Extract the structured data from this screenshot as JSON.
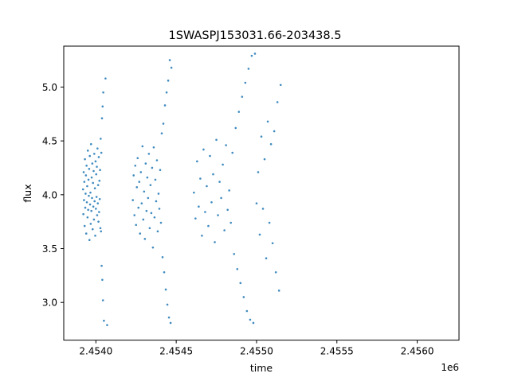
{
  "chart_data": {
    "type": "scatter",
    "title": "1SWASPJ153031.66-203438.5",
    "xlabel": "time",
    "ylabel": "flux",
    "x_offset_label": "1e6",
    "xlim": [
      2453750,
      2456210
    ],
    "ylim": [
      2.65,
      5.38
    ],
    "x_ticks": [
      2453950,
      2454450,
      2454950,
      2455450,
      2455950
    ],
    "x_tick_labels": [
      "2.4540",
      "2.4545",
      "2.4550",
      "2.4555",
      "2.4560"
    ],
    "y_ticks": [
      3.0,
      3.5,
      4.0,
      4.5,
      5.0
    ],
    "y_tick_labels": [
      "3.0",
      "3.5",
      "4.0",
      "4.5",
      "5.0"
    ],
    "grid": false,
    "marker_color": "#1f77b4",
    "series": [
      {
        "x": [
          2453870,
          2453872,
          2453874,
          2453876,
          2453878,
          2453880,
          2453882,
          2453884,
          2453886,
          2453888,
          2453890,
          2453892,
          2453894,
          2453896,
          2453898,
          2453900,
          2453902,
          2453904,
          2453906,
          2453908,
          2453910,
          2453912,
          2453914,
          2453916,
          2453918,
          2453920,
          2453922,
          2453924,
          2453926,
          2453928,
          2453930,
          2453932,
          2453934,
          2453936,
          2453938,
          2453940,
          2453942,
          2453944,
          2453946,
          2453948,
          2453950,
          2453952,
          2453954,
          2453956,
          2453958,
          2453960,
          2453962,
          2453964,
          2453966,
          2453968,
          2453970,
          2453972,
          2453974,
          2453976,
          2453978,
          2453980,
          2453982,
          2453984,
          2453986,
          2453988,
          2453990,
          2453992,
          2453994,
          2453996,
          2454000,
          2454010,
          2454020
        ],
        "y": [
          4.05,
          3.82,
          4.21,
          3.95,
          4.12,
          3.71,
          4.33,
          3.88,
          4.01,
          4.18,
          3.64,
          4.27,
          3.93,
          4.08,
          3.79,
          4.41,
          3.86,
          4.14,
          3.99,
          4.24,
          3.58,
          4.36,
          3.91,
          4.02,
          3.73,
          4.47,
          3.85,
          4.16,
          3.97,
          4.29,
          3.68,
          4.11,
          3.89,
          4.22,
          3.77,
          4.38,
          3.94,
          4.06,
          3.62,
          4.31,
          3.87,
          4.19,
          3.98,
          4.26,
          3.81,
          4.43,
          3.92,
          4.09,
          3.75,
          4.35,
          3.84,
          4.13,
          3.96,
          4.23,
          3.69,
          4.52,
          3.66,
          4.39,
          3.34,
          4.71,
          3.21,
          4.82,
          3.02,
          4.95,
          2.83,
          5.08,
          2.79
        ]
      },
      {
        "x": [
          2454180,
          2454185,
          2454190,
          2454195,
          2454200,
          2454205,
          2454210,
          2454215,
          2454220,
          2454225,
          2454230,
          2454235,
          2454240,
          2454245,
          2454250,
          2454255,
          2454260,
          2454265,
          2454270,
          2454275,
          2454280,
          2454285,
          2454290,
          2454295,
          2454300,
          2454305,
          2454310,
          2454315,
          2454320,
          2454325,
          2454330,
          2454335,
          2454340,
          2454345,
          2454350,
          2454355,
          2454360,
          2454365,
          2454370,
          2454375,
          2454380,
          2454385,
          2454390,
          2454395,
          2454400,
          2454405,
          2454410,
          2454415,
          2454420
        ],
        "y": [
          3.95,
          4.18,
          3.81,
          4.27,
          3.72,
          4.07,
          4.34,
          3.88,
          4.12,
          3.64,
          4.21,
          3.92,
          4.45,
          3.77,
          4.03,
          3.59,
          4.29,
          3.85,
          4.16,
          3.97,
          4.38,
          3.69,
          4.09,
          3.83,
          4.25,
          3.51,
          4.44,
          3.79,
          4.14,
          3.94,
          4.32,
          3.66,
          4.01,
          3.87,
          4.23,
          3.74,
          4.57,
          3.42,
          4.66,
          3.28,
          4.83,
          3.12,
          4.95,
          2.98,
          5.06,
          2.86,
          5.25,
          2.81,
          5.18
        ]
      },
      {
        "x": [
          2454560,
          2454570,
          2454580,
          2454590,
          2454600,
          2454610,
          2454620,
          2454630,
          2454640,
          2454650,
          2454660,
          2454670,
          2454680,
          2454690,
          2454700,
          2454710,
          2454720,
          2454730,
          2454740,
          2454750,
          2454760,
          2454770,
          2454780,
          2454790,
          2454800,
          2454810,
          2454820,
          2454830,
          2454840,
          2454850,
          2454860,
          2454870,
          2454880,
          2454890,
          2454900,
          2454910,
          2454920,
          2454930,
          2454940,
          2454950,
          2454960,
          2454970,
          2454980,
          2454990,
          2455000,
          2455010,
          2455020,
          2455030,
          2455040,
          2455050,
          2455060,
          2455070,
          2455080,
          2455090,
          2455100
        ],
        "y": [
          4.02,
          3.78,
          4.31,
          3.89,
          4.15,
          3.62,
          4.42,
          3.84,
          4.08,
          3.71,
          4.36,
          3.93,
          4.19,
          3.56,
          4.51,
          3.81,
          4.12,
          3.97,
          4.28,
          3.67,
          4.46,
          3.86,
          4.04,
          3.74,
          4.39,
          3.45,
          4.62,
          3.31,
          4.77,
          3.18,
          4.91,
          3.05,
          5.04,
          2.92,
          5.17,
          2.84,
          5.29,
          2.81,
          5.31,
          3.92,
          4.21,
          3.63,
          4.54,
          3.87,
          4.33,
          3.41,
          4.68,
          3.74,
          4.47,
          3.55,
          4.59,
          3.28,
          4.86,
          3.11,
          5.02
        ]
      }
    ]
  }
}
